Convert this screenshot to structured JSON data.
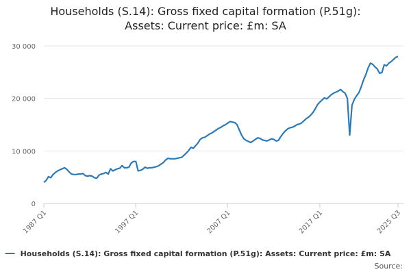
{
  "chart_data": {
    "type": "line",
    "title": [
      "Households (S.14): Gross fixed capital formation (P.51g):",
      "Assets: Current price: £m: SA"
    ],
    "categories": [
      "1987 Q1",
      null,
      null,
      null,
      null,
      null,
      null,
      null,
      null,
      null,
      null,
      null,
      null,
      null,
      null,
      null,
      null,
      null,
      null,
      null,
      null,
      null,
      null,
      null,
      null,
      null,
      null,
      null,
      null,
      null,
      null,
      null,
      null,
      null,
      null,
      null,
      null,
      null,
      null,
      null,
      "1997 Q1",
      null,
      null,
      null,
      null,
      null,
      null,
      null,
      null,
      null,
      null,
      null,
      null,
      null,
      null,
      null,
      null,
      null,
      null,
      null,
      null,
      null,
      null,
      null,
      null,
      null,
      null,
      null,
      null,
      null,
      null,
      null,
      null,
      null,
      null,
      null,
      null,
      null,
      null,
      null,
      "2007 Q1",
      null,
      null,
      null,
      null,
      null,
      null,
      null,
      null,
      null,
      null,
      null,
      null,
      null,
      null,
      null,
      null,
      null,
      null,
      null,
      null,
      null,
      null,
      null,
      null,
      null,
      null,
      null,
      null,
      null,
      null,
      null,
      null,
      null,
      null,
      null,
      null,
      null,
      null,
      null,
      "2017 Q1",
      null,
      null,
      null,
      null,
      null,
      null,
      null,
      null,
      null,
      null,
      null,
      null,
      null,
      null,
      null,
      null,
      null,
      null,
      null,
      null,
      null,
      null,
      null,
      null,
      null,
      null,
      null,
      null,
      null,
      null,
      null,
      null,
      null,
      "2025 Q3"
    ],
    "series": [
      {
        "name": "Households (S.14): Gross fixed capital formation (P.51g): Assets: Current price: £m: SA",
        "color": "#2a7ab8",
        "values": [
          4000,
          4400,
          5100,
          4900,
          5500,
          5900,
          6200,
          6400,
          6600,
          6800,
          6500,
          6000,
          5600,
          5500,
          5500,
          5600,
          5600,
          5700,
          5300,
          5200,
          5300,
          5200,
          4900,
          4800,
          5400,
          5600,
          5700,
          5900,
          5600,
          6600,
          6200,
          6400,
          6600,
          6700,
          7200,
          6800,
          6800,
          6900,
          7700,
          8000,
          8000,
          6200,
          6300,
          6500,
          6900,
          6700,
          6800,
          6800,
          6900,
          7000,
          7200,
          7500,
          7800,
          8300,
          8600,
          8500,
          8500,
          8500,
          8600,
          8700,
          8800,
          9200,
          9600,
          10100,
          10700,
          10500,
          11000,
          11500,
          12200,
          12500,
          12600,
          12900,
          13200,
          13400,
          13700,
          14000,
          14300,
          14500,
          14800,
          15000,
          15300,
          15600,
          15500,
          15400,
          15000,
          14000,
          13000,
          12300,
          12000,
          11800,
          11600,
          11900,
          12200,
          12500,
          12400,
          12100,
          12000,
          11900,
          12100,
          12300,
          12200,
          11900,
          12000,
          12700,
          13300,
          13800,
          14200,
          14400,
          14500,
          14700,
          15000,
          15100,
          15300,
          15700,
          16100,
          16400,
          16800,
          17300,
          18000,
          18800,
          19300,
          19700,
          20100,
          19900,
          20300,
          20700,
          21000,
          21200,
          21400,
          21700,
          21300,
          21000,
          20000,
          13000,
          18700,
          19800,
          20500,
          21100,
          22200,
          23500,
          24500,
          25800,
          26700,
          26500,
          26000,
          25600,
          24800,
          24900,
          26400,
          26200,
          26700,
          27000,
          27400,
          27800,
          28000
        ]
      }
    ],
    "ylim": [
      0,
      30000
    ],
    "yticks": [
      0,
      {
        "value": 10000,
        "label": "10 000"
      },
      {
        "value": 20000,
        "label": "20 000"
      },
      {
        "value": 30000,
        "label": "30 000"
      }
    ],
    "grid": true,
    "source_label": "Source:"
  }
}
